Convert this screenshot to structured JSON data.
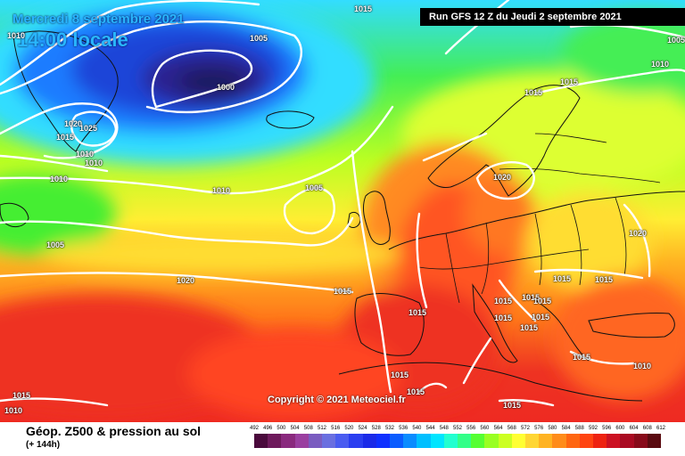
{
  "header": {
    "valid_date": "Mercredi 8 septembre 2021",
    "valid_time": "14:00 locale",
    "run_info": "Run GFS 12 Z du Jeudi 2 septembre 2021"
  },
  "map": {
    "copyright": "Copyright © 2021 Meteociel.fr",
    "isobar_labels": [
      "1015",
      "1005",
      "1000",
      "1005",
      "1010",
      "1010",
      "1015",
      "1020",
      "1025",
      "1015",
      "1010",
      "1010",
      "1010",
      "1005",
      "1010",
      "1005",
      "1020",
      "1015",
      "1015",
      "1015",
      "1020",
      "1020",
      "1015",
      "1015",
      "1015",
      "1015",
      "1015",
      "1015",
      "1015",
      "1015",
      "1015",
      "1015",
      "1010",
      "1015",
      "1015",
      "1015",
      "1010"
    ]
  },
  "footer": {
    "product_title": "Géop. Z500 & pression au sol",
    "forecast_step": "(+ 144h)"
  },
  "legend": {
    "ticks": [
      "492",
      "496",
      "500",
      "504",
      "508",
      "512",
      "516",
      "520",
      "524",
      "528",
      "532",
      "536",
      "540",
      "544",
      "548",
      "552",
      "556",
      "560",
      "564",
      "568",
      "572",
      "576",
      "580",
      "584",
      "588",
      "592",
      "596",
      "600",
      "604",
      "608",
      "612"
    ],
    "colors": [
      "#4a0a3c",
      "#6e1a5c",
      "#8a2a7e",
      "#9a3fa0",
      "#7a5cc0",
      "#6a6fe0",
      "#4a5cf0",
      "#2a3ef0",
      "#1a2ae8",
      "#0f30ff",
      "#0a5cff",
      "#0a8cff",
      "#00bfff",
      "#00e5ff",
      "#22ffd0",
      "#33ff88",
      "#55ff33",
      "#99ff22",
      "#ccff22",
      "#ffff33",
      "#ffd633",
      "#ffb322",
      "#ff8c1a",
      "#ff6611",
      "#ff4411",
      "#ee2211",
      "#cc1122",
      "#aa0a22",
      "#880a1a",
      "#5a0a10"
    ]
  },
  "colors": {
    "low_core": "#1f1b5e",
    "low_mid": "#1f44d8",
    "cyan": "#33ddff",
    "green": "#55ee33",
    "yellow": "#ffee33",
    "orange": "#ff8a22",
    "red": "#ee3322",
    "isobar": "#ffffff",
    "coast": "#111111"
  }
}
